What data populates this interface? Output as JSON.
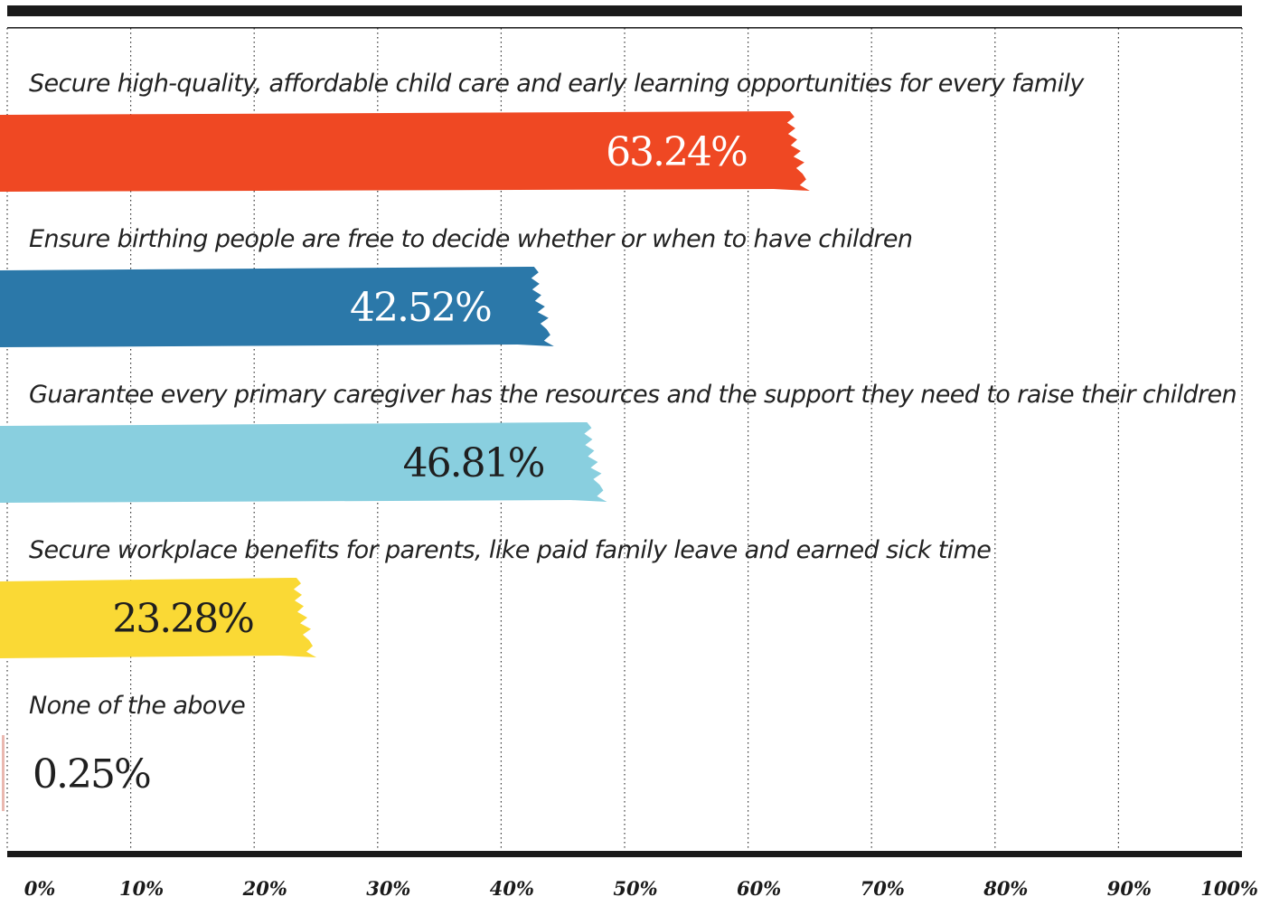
{
  "chart_data": {
    "type": "bar",
    "orientation": "horizontal",
    "categories": [
      "Secure high-quality, affordable child care and early learning opportunities for every family",
      "Ensure birthing people are free to decide whether or when to have children",
      "Guarantee every primary caregiver has the resources and the support they need to raise their children",
      "Secure workplace benefits for parents, like paid family leave and earned sick time",
      "None of the above"
    ],
    "values": [
      63.24,
      42.52,
      46.81,
      23.28,
      0.25
    ],
    "value_labels": [
      "63.24%",
      "42.52%",
      "46.81%",
      "23.28%",
      "0.25%"
    ],
    "colors": [
      "#ef4823",
      "#2b78a9",
      "#89cfdf",
      "#fad935",
      "#eab8b0"
    ],
    "xlim": [
      0,
      100
    ],
    "x_ticks": [
      0,
      10,
      20,
      30,
      40,
      50,
      60,
      70,
      80,
      90,
      100
    ],
    "x_tick_labels": [
      "0%",
      "10%",
      "20%",
      "30%",
      "40%",
      "50%",
      "60%",
      "70%",
      "80%",
      "90%",
      "100%"
    ],
    "grid": true,
    "title": "",
    "xlabel": "",
    "ylabel": ""
  }
}
